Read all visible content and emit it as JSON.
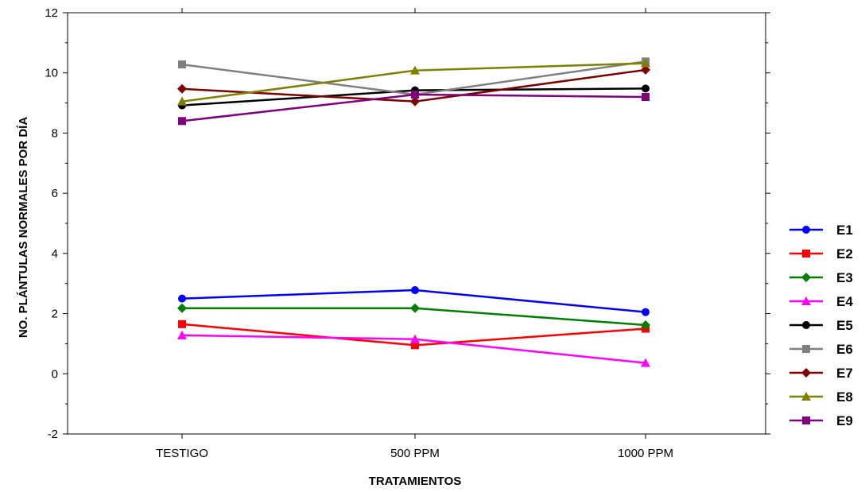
{
  "chart_data": {
    "type": "line",
    "title": "",
    "xlabel": "TRATAMIENTOS",
    "ylabel": "NO. PLÁNTULAS NORMALES POR DÍA",
    "categories": [
      "TESTIGO",
      "500 PPM",
      "1000 PPM"
    ],
    "ylim": [
      -2,
      12
    ],
    "yticks": [
      -2,
      0,
      2,
      4,
      6,
      8,
      10,
      12
    ],
    "grid": false,
    "legend_position": "right",
    "series": [
      {
        "name": "E1",
        "values": [
          2.5,
          2.78,
          2.05
        ],
        "color": "#0000ff",
        "marker": "circle"
      },
      {
        "name": "E2",
        "values": [
          1.65,
          0.95,
          1.5
        ],
        "color": "#ff0000",
        "marker": "square"
      },
      {
        "name": "E3",
        "values": [
          2.18,
          2.18,
          1.62
        ],
        "color": "#008000",
        "marker": "diamond"
      },
      {
        "name": "E4",
        "values": [
          1.28,
          1.15,
          0.36
        ],
        "color": "#ff00ff",
        "marker": "triangle"
      },
      {
        "name": "E5",
        "values": [
          8.92,
          9.42,
          9.48
        ],
        "color": "#000000",
        "marker": "circle"
      },
      {
        "name": "E6",
        "values": [
          10.28,
          9.28,
          10.38
        ],
        "color": "#808080",
        "marker": "square"
      },
      {
        "name": "E7",
        "values": [
          9.47,
          9.05,
          10.1
        ],
        "color": "#800000",
        "marker": "diamond"
      },
      {
        "name": "E8",
        "values": [
          9.05,
          10.08,
          10.32
        ],
        "color": "#808000",
        "marker": "triangle"
      },
      {
        "name": "E9",
        "values": [
          8.4,
          9.28,
          9.2
        ],
        "color": "#800080",
        "marker": "square"
      }
    ]
  }
}
